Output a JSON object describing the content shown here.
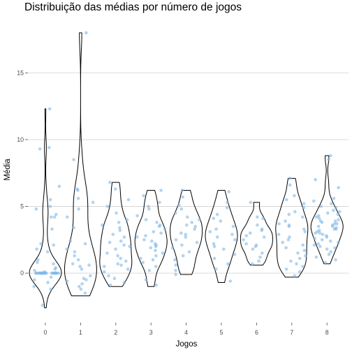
{
  "chart_data": {
    "type": "scatter",
    "overlay": "violin",
    "title": "Distribuição das médias por número de jogos",
    "xlabel": "Jogos",
    "ylabel": "Média",
    "categories": [
      "0",
      "1",
      "2",
      "3",
      "4",
      "5",
      "6",
      "7",
      "8"
    ],
    "yticks": [
      0,
      5,
      10,
      15
    ],
    "ylim": [
      -3.5,
      19.2
    ],
    "grid": "horizontal",
    "point_color": "#7fb8e8",
    "violin_color": "#000000",
    "groups": [
      {
        "jogos": 0,
        "ymin": -2.6,
        "ymax": 12.3,
        "points": [
          12.3,
          9.3,
          9.4,
          6.5,
          5.5,
          5.0,
          4.8,
          4.4,
          4.2,
          4.2,
          3.3,
          2.2,
          2.1,
          1.8,
          1.6,
          1.0,
          0.8,
          0.7,
          0.4,
          0.3,
          0.2,
          0.1,
          0,
          0,
          0,
          0,
          0,
          0,
          0,
          0,
          0,
          0,
          0,
          0,
          0,
          0,
          0,
          0,
          0,
          0,
          0,
          0,
          0,
          0,
          0,
          0,
          -0.3,
          -0.5,
          -0.7,
          -1.0,
          -1.2,
          -2.4
        ]
      },
      {
        "jogos": 1,
        "ymin": -1.7,
        "ymax": 18.0,
        "points": [
          18.0,
          8.5,
          6.3,
          6.2,
          5.6,
          5.3,
          4.8,
          4.2,
          3.4,
          2.4,
          2.2,
          1.8,
          1.6,
          1.3,
          1.0,
          0.7,
          0.6,
          0.5,
          0.3,
          -0.2,
          -0.4,
          -0.5,
          -0.6,
          -0.8,
          -1.0,
          -1.2,
          -1.5
        ]
      },
      {
        "jogos": 2,
        "ymin": -1.0,
        "ymax": 6.8,
        "points": [
          6.8,
          6.3,
          5.5,
          5.0,
          4.5,
          4.0,
          3.8,
          3.6,
          3.4,
          3.2,
          2.9,
          2.7,
          2.4,
          2.3,
          2.1,
          2.0,
          1.8,
          1.5,
          1.3,
          1.1,
          0.9,
          0.7,
          0.6,
          0.5,
          0.3,
          0.1,
          -0.2,
          -0.4,
          -0.7,
          -0.9
        ]
      },
      {
        "jogos": 3,
        "ymin": -1.0,
        "ymax": 6.2,
        "points": [
          6.2,
          5.8,
          5.3,
          5.0,
          4.8,
          4.3,
          4.0,
          3.8,
          3.6,
          3.5,
          3.3,
          3.1,
          3.0,
          2.8,
          2.7,
          2.5,
          2.4,
          2.2,
          2.1,
          2.0,
          1.9,
          1.7,
          1.5,
          1.3,
          1.1,
          1.0,
          0.8,
          0.5,
          0.2,
          -0.5,
          -0.9
        ]
      },
      {
        "jogos": 4,
        "ymin": -0.1,
        "ymax": 6.2,
        "points": [
          6.2,
          5.7,
          5.1,
          4.8,
          4.5,
          4.2,
          4.0,
          3.8,
          3.6,
          3.5,
          3.3,
          3.0,
          2.9,
          2.7,
          2.5,
          2.3,
          2.1,
          1.9,
          1.6,
          1.3,
          1.0,
          0.6,
          0.2,
          -0.1
        ]
      },
      {
        "jogos": 5,
        "ymin": -0.7,
        "ymax": 6.2,
        "points": [
          6.1,
          5.3,
          4.9,
          4.4,
          4.1,
          3.9,
          3.5,
          3.3,
          3.1,
          2.9,
          2.7,
          2.5,
          2.2,
          2.0,
          1.8,
          1.4,
          1.1,
          0.7,
          0.3,
          -0.6
        ]
      },
      {
        "jogos": 6,
        "ymin": 0.6,
        "ymax": 5.3,
        "points": [
          5.3,
          4.2,
          4.1,
          3.6,
          3.3,
          3.2,
          3.0,
          2.8,
          2.7,
          2.5,
          2.2,
          2.1,
          2.0,
          1.8,
          1.5,
          1.2,
          0.9,
          0.7
        ]
      },
      {
        "jogos": 7,
        "ymin": -0.3,
        "ymax": 7.1,
        "points": [
          7.1,
          6.6,
          5.8,
          5.5,
          5.2,
          4.9,
          4.6,
          4.4,
          4.2,
          3.9,
          3.7,
          3.6,
          3.5,
          3.3,
          3.1,
          2.9,
          2.7,
          2.5,
          2.3,
          2.1,
          1.9,
          1.7,
          1.5,
          1.3,
          1.1,
          0.9,
          0.7,
          0.5,
          0.3,
          0.1,
          -0.2
        ]
      },
      {
        "jogos": 8,
        "ymin": 0.7,
        "ymax": 8.8,
        "points": [
          8.8,
          8.5,
          7.0,
          6.4,
          5.6,
          5.4,
          5.2,
          5.0,
          4.9,
          4.7,
          4.6,
          4.5,
          4.4,
          4.3,
          4.2,
          4.1,
          4.0,
          3.9,
          3.9,
          3.8,
          3.7,
          3.7,
          3.6,
          3.5,
          3.5,
          3.4,
          3.3,
          3.3,
          3.2,
          3.1,
          3.0,
          3.0,
          2.9,
          2.8,
          2.7,
          2.6,
          2.5,
          2.4,
          2.3,
          2.2,
          2.1,
          2.0,
          1.9,
          1.8,
          1.6,
          1.4,
          1.2,
          1.0,
          0.8
        ]
      }
    ]
  }
}
